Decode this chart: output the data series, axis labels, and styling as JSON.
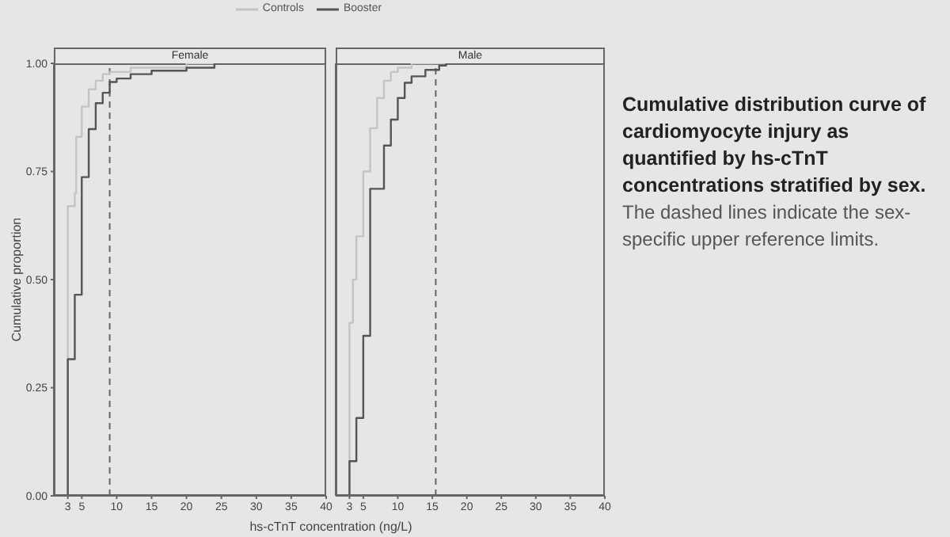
{
  "chart_data": [
    {
      "type": "step",
      "title": "Female",
      "ylabel": "Cumulative proportion",
      "xlabel": "hs-cTnT concentration (ng/L)",
      "legend": "top",
      "xlim": [
        1,
        40
      ],
      "xticks": [
        3,
        5,
        10,
        15,
        20,
        25,
        30,
        35,
        40
      ],
      "ylim": [
        0,
        1
      ],
      "yticks": [
        {
          "value": 0,
          "label": "0.00"
        },
        0.25,
        {
          "value": 0.5,
          "label": "0.50"
        },
        0.75,
        {
          "value": 1,
          "label": "1.00"
        }
      ],
      "ref_lines": [
        {
          "axis": "x",
          "value": 9,
          "line_style": "dashed",
          "color": "#666666"
        }
      ],
      "series": [
        {
          "name": "Controls",
          "color": "#c4c4c4",
          "x": [
            3,
            3,
            4,
            4.2,
            5,
            6,
            7,
            8,
            9,
            12,
            20,
            40
          ],
          "values": [
            0,
            0.67,
            0.7,
            0.83,
            0.9,
            0.94,
            0.96,
            0.975,
            0.98,
            0.99,
            1,
            1
          ]
        },
        {
          "name": "Booster",
          "color": "#555555",
          "x": [
            3,
            3,
            4,
            5,
            6,
            7,
            8,
            9,
            10,
            12,
            15,
            20,
            24,
            40
          ],
          "values": [
            0,
            0.316,
            0.465,
            0.737,
            0.848,
            0.908,
            0.932,
            0.957,
            0.965,
            0.975,
            0.983,
            0.99,
            1,
            1
          ]
        }
      ]
    },
    {
      "type": "step",
      "title": "Male",
      "tick_labels": "x",
      "xlim": [
        1,
        40
      ],
      "xticks": [
        3,
        5,
        10,
        15,
        20,
        25,
        30,
        35,
        40
      ],
      "ylim": [
        0,
        1
      ],
      "yticks": [
        0,
        0.25,
        0.5,
        0.75,
        1
      ],
      "ref_lines": [
        {
          "axis": "x",
          "value": 15.5,
          "line_style": "dashed",
          "color": "#666666"
        }
      ],
      "series": [
        {
          "name": "Controls",
          "color": "#c4c4c4",
          "x": [
            3,
            3,
            3.5,
            4,
            5,
            6,
            7,
            8,
            9,
            10,
            12,
            40
          ],
          "values": [
            0,
            0.4,
            0.5,
            0.6,
            0.75,
            0.85,
            0.92,
            0.96,
            0.98,
            0.99,
            1,
            1
          ]
        },
        {
          "name": "Booster",
          "color": "#555555",
          "x": [
            3,
            3,
            4,
            5,
            6,
            8,
            9,
            10,
            11,
            12,
            14,
            16,
            17,
            40
          ],
          "values": [
            0,
            0.08,
            0.18,
            0.37,
            0.71,
            0.81,
            0.87,
            0.92,
            0.955,
            0.97,
            0.985,
            0.995,
            1,
            1
          ]
        }
      ]
    },
    {
      "type": "other",
      "title": "Cumulative distribution curve of cardiomyocyte injury as quantified by hs-cTnT concentrations stratified by sex.",
      "subtitle": "The dashed lines indicate the sex-specific upper reference limits."
    }
  ]
}
